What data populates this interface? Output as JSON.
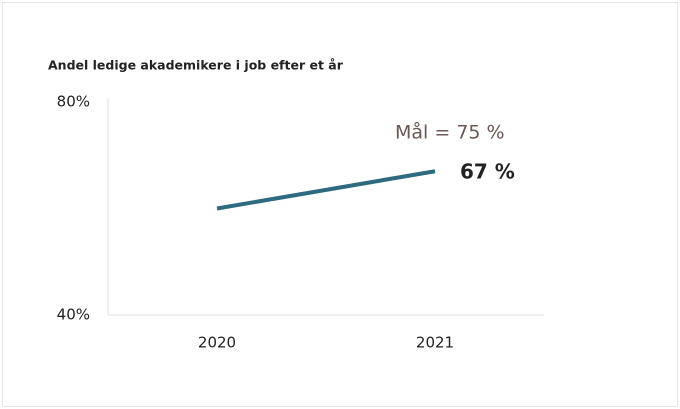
{
  "chart_data": {
    "type": "line",
    "title": "Andel ledige akademikere i job efter et år",
    "categories": [
      "2020",
      "2021"
    ],
    "series": [
      {
        "name": null,
        "color": "#2e6a80",
        "values": [
          60,
          67
        ],
        "value_labels": [
          null,
          "67 %"
        ]
      }
    ],
    "ylim": [
      40,
      80
    ],
    "yticks": [
      {
        "value": 40,
        "label": "40%"
      },
      {
        "value": 80,
        "label": "80%"
      }
    ],
    "annotations": [
      "Mål = 75 %"
    ]
  }
}
